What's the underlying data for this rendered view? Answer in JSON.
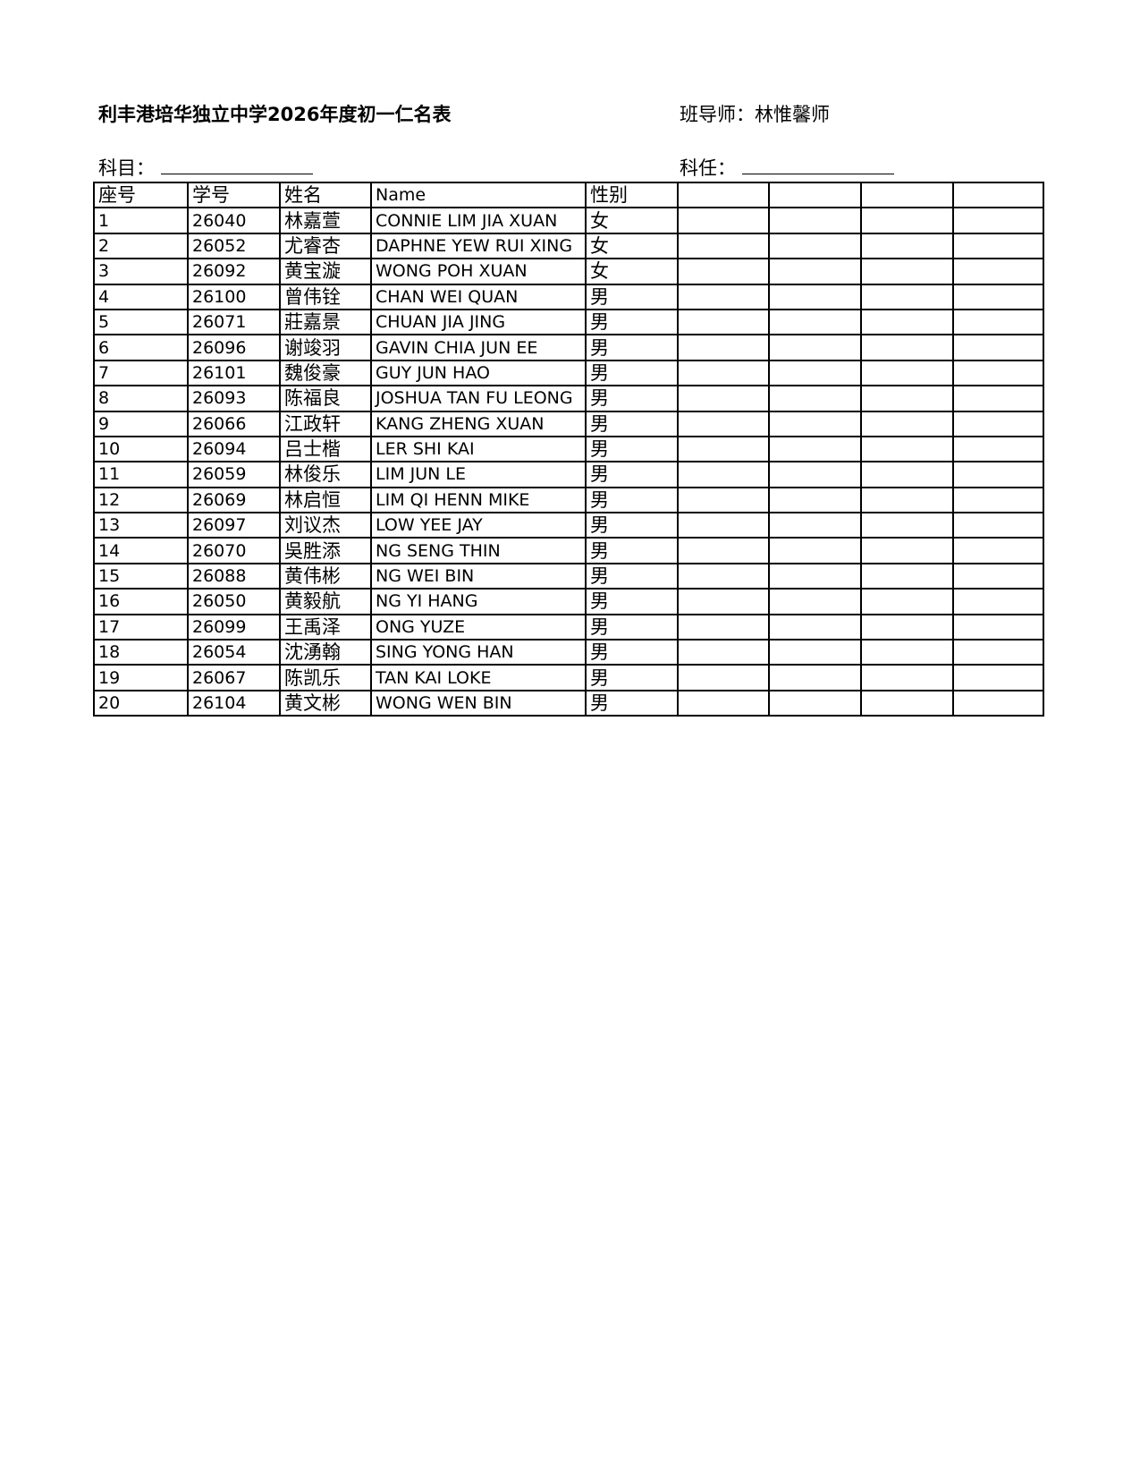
{
  "header": {
    "title": "利丰港培华独立中学2026年度初一仁名表",
    "teacher_label": "班导师：",
    "teacher_name": "林惟馨师",
    "subject_label": "科目：",
    "subject_teacher_label": "科任："
  },
  "table": {
    "columns": [
      "座号",
      "学号",
      "姓名",
      "Name",
      "性别",
      "",
      "",
      "",
      ""
    ],
    "rows": [
      [
        "1",
        "26040",
        "林嘉萱",
        "CONNIE LIM JIA XUAN",
        "女"
      ],
      [
        "2",
        "26052",
        "尤睿杏",
        "DAPHNE YEW RUI XING",
        "女"
      ],
      [
        "3",
        "26092",
        "黄宝漩",
        "WONG POH XUAN",
        "女"
      ],
      [
        "4",
        "26100",
        "曾伟铨",
        "CHAN WEI QUAN",
        "男"
      ],
      [
        "5",
        "26071",
        "莊嘉景",
        "CHUAN JIA JING",
        "男"
      ],
      [
        "6",
        "26096",
        "谢竣羽",
        "GAVIN CHIA JUN EE",
        "男"
      ],
      [
        "7",
        "26101",
        "魏俊豪",
        "GUY JUN HAO",
        "男"
      ],
      [
        "8",
        "26093",
        "陈福良",
        "JOSHUA TAN FU LEONG",
        "男"
      ],
      [
        "9",
        "26066",
        "江政轩",
        "KANG ZHENG XUAN",
        "男"
      ],
      [
        "10",
        "26094",
        "吕士楷",
        "LER SHI KAI",
        "男"
      ],
      [
        "11",
        "26059",
        "林俊乐",
        "LIM JUN LE",
        "男"
      ],
      [
        "12",
        "26069",
        "林启恒",
        "LIM QI HENN MIKE",
        "男"
      ],
      [
        "13",
        "26097",
        "刘议杰",
        "LOW YEE JAY",
        "男"
      ],
      [
        "14",
        "26070",
        "吳胜添",
        "NG SENG THIN",
        "男"
      ],
      [
        "15",
        "26088",
        "黄伟彬",
        "NG WEI BIN",
        "男"
      ],
      [
        "16",
        "26050",
        "黄毅航",
        "NG YI HANG",
        "男"
      ],
      [
        "17",
        "26099",
        "王禹泽",
        "ONG YUZE",
        "男"
      ],
      [
        "18",
        "26054",
        "沈湧翰",
        "SING YONG HAN",
        "男"
      ],
      [
        "19",
        "26067",
        "陈凯乐",
        "TAN KAI LOKE",
        "男"
      ],
      [
        "20",
        "26104",
        "黄文彬",
        "WONG WEN BIN",
        "男"
      ]
    ]
  }
}
